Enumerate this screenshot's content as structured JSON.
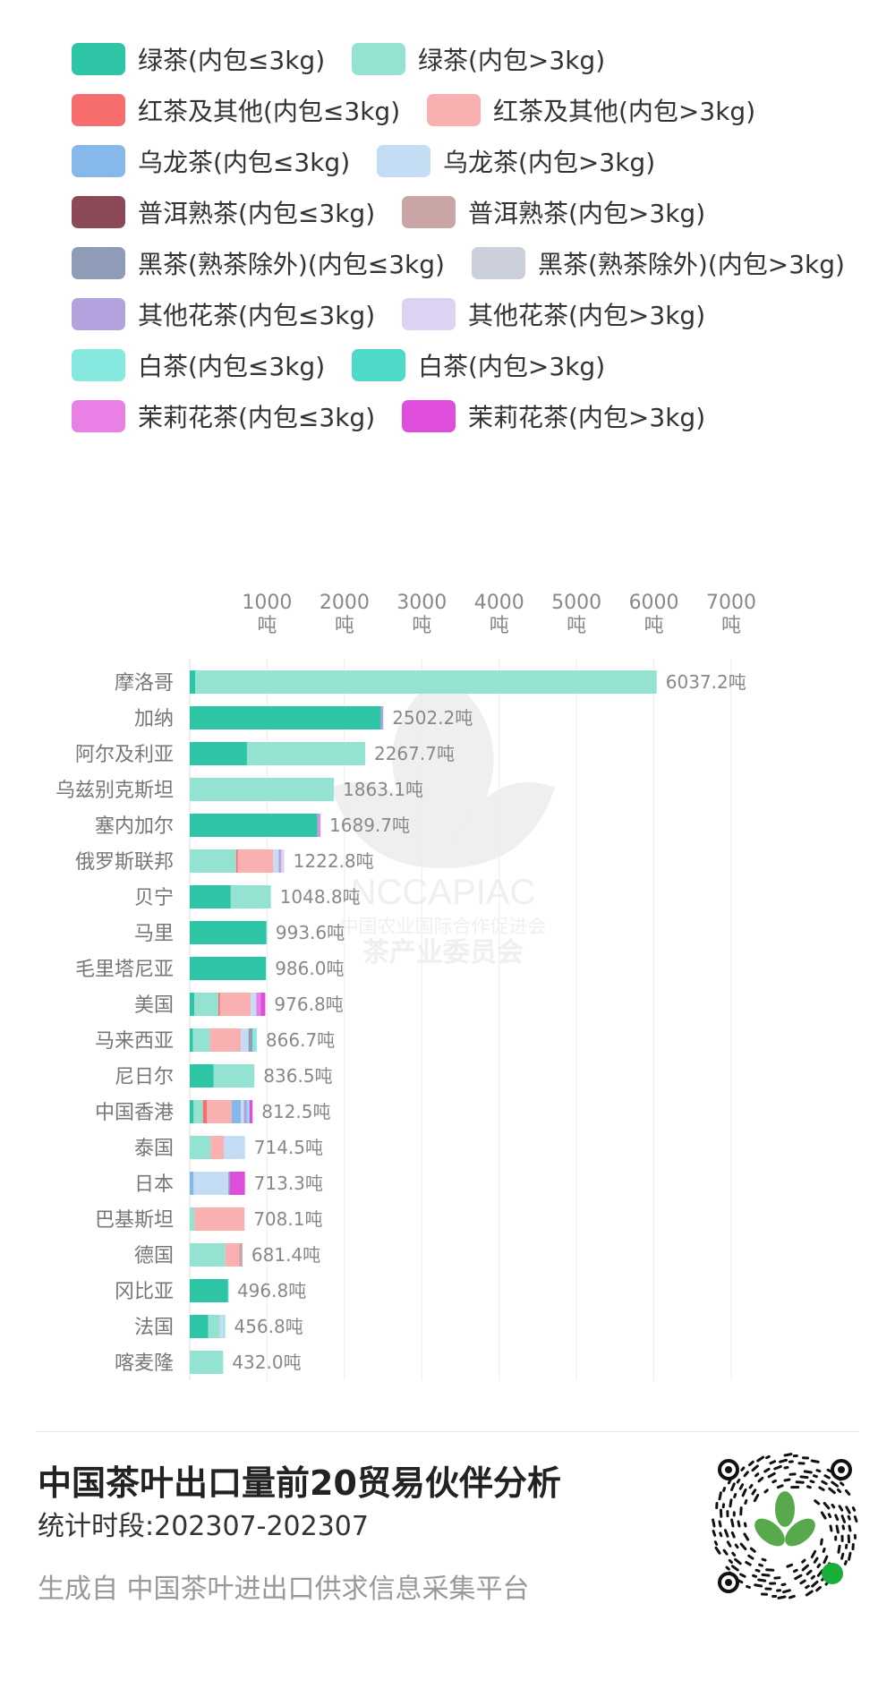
{
  "colors": {
    "green_small": "#2ec5a6",
    "green_large": "#94e3d2",
    "red_small": "#f76c6c",
    "red_large": "#f9b0b0",
    "oolong_small": "#86b8ea",
    "oolong_large": "#c5dcf5",
    "puer_small": "#8c4a58",
    "puer_large": "#c9a5a5",
    "dark_small": "#8f9cb8",
    "dark_large": "#cbcfdc",
    "flower_small": "#b3a2dd",
    "flower_large": "#ddd2f2",
    "white_small": "#86e8de",
    "white_large": "#4fd9c8",
    "jasmine_small": "#e880e6",
    "jasmine_large": "#de4ddb"
  },
  "legend": [
    {
      "label": "绿茶(内包≤3kg)",
      "color": "#2ec5a6"
    },
    {
      "label": "绿茶(内包>3kg)",
      "color": "#94e3d2"
    },
    {
      "label": "红茶及其他(内包≤3kg)",
      "color": "#f76c6c"
    },
    {
      "label": "红茶及其他(内包>3kg)",
      "color": "#f9b0b0"
    },
    {
      "label": "乌龙茶(内包≤3kg)",
      "color": "#86b8ea"
    },
    {
      "label": "乌龙茶(内包>3kg)",
      "color": "#c5dcf5"
    },
    {
      "label": "普洱熟茶(内包≤3kg)",
      "color": "#8c4a58"
    },
    {
      "label": "普洱熟茶(内包>3kg)",
      "color": "#c9a5a5"
    },
    {
      "label": "黑茶(熟茶除外)(内包≤3kg)",
      "color": "#8f9cb8"
    },
    {
      "label": "黑茶(熟茶除外)(内包>3kg)",
      "color": "#cbcfdc"
    },
    {
      "label": "其他花茶(内包≤3kg)",
      "color": "#b3a2dd"
    },
    {
      "label": "其他花茶(内包>3kg)",
      "color": "#ddd2f2"
    },
    {
      "label": "白茶(内包≤3kg)",
      "color": "#86e8de"
    },
    {
      "label": "白茶(内包>3kg)",
      "color": "#4fd9c8"
    },
    {
      "label": "茉莉花茶(内包≤3kg)",
      "color": "#e880e6"
    },
    {
      "label": "茉莉花茶(内包>3kg)",
      "color": "#de4ddb"
    }
  ],
  "chart_data": {
    "type": "bar",
    "orientation": "horizontal",
    "stacked": true,
    "axis_position": "top",
    "xlim": [
      0,
      7000
    ],
    "xticks": [
      1000,
      2000,
      3000,
      4000,
      5000,
      6000,
      7000
    ],
    "tick_unit": "吨",
    "grid": true,
    "legend_position": "top",
    "categories": [
      "摩洛哥",
      "加纳",
      "阿尔及利亚",
      "乌兹别克斯坦",
      "塞内加尔",
      "俄罗斯联邦",
      "贝宁",
      "马里",
      "毛里塔尼亚",
      "美国",
      "马来西亚",
      "尼日尔",
      "中国香港",
      "泰国",
      "日本",
      "巴基斯坦",
      "德国",
      "冈比亚",
      "法国",
      "喀麦隆"
    ],
    "totals": [
      6037.2,
      2502.2,
      2267.7,
      1863.1,
      1689.7,
      1222.8,
      1048.8,
      993.6,
      986.0,
      976.8,
      866.7,
      836.5,
      812.5,
      714.5,
      713.3,
      708.1,
      681.4,
      496.8,
      456.8,
      432.0
    ],
    "total_labels": [
      "6037.2吨",
      "2502.2吨",
      "2267.7吨",
      "1863.1吨",
      "1689.7吨",
      "1222.8吨",
      "1048.8吨",
      "993.6吨",
      "986.0吨",
      "976.8吨",
      "866.7吨",
      "836.5吨",
      "812.5吨",
      "714.5吨",
      "713.3吨",
      "708.1吨",
      "681.4吨",
      "496.8吨",
      "456.8吨",
      "432.0吨"
    ],
    "series": [
      {
        "name": "绿茶(内包≤3kg)",
        "color": "#2ec5a6",
        "values": [
          70,
          2470,
          740,
          0,
          1650,
          0,
          530,
          990,
          986,
          60,
          40,
          310,
          50,
          0,
          0,
          0,
          0,
          495,
          240,
          0
        ]
      },
      {
        "name": "绿茶(内包>3kg)",
        "color": "#94e3d2",
        "values": [
          5967,
          0,
          1527,
          1863,
          0,
          600,
          519,
          0,
          0,
          310,
          220,
          526,
          120,
          270,
          0,
          60,
          460,
          0,
          150,
          432
        ]
      },
      {
        "name": "红茶及其他(内包≤3kg)",
        "color": "#f76c6c",
        "values": [
          0,
          0,
          0,
          0,
          0,
          20,
          0,
          0,
          0,
          20,
          0,
          0,
          50,
          0,
          0,
          0,
          0,
          0,
          0,
          0
        ]
      },
      {
        "name": "红茶及其他(内包>3kg)",
        "color": "#f9b0b0",
        "values": [
          0,
          0,
          0,
          0,
          0,
          460,
          0,
          0,
          0,
          400,
          400,
          0,
          320,
          170,
          0,
          648,
          180,
          0,
          0,
          0
        ]
      },
      {
        "name": "乌龙茶(内包≤3kg)",
        "color": "#86b8ea",
        "values": [
          0,
          0,
          0,
          0,
          0,
          0,
          0,
          0,
          0,
          0,
          0,
          0,
          120,
          0,
          50,
          0,
          0,
          0,
          0,
          0
        ]
      },
      {
        "name": "乌龙茶(内包>3kg)",
        "color": "#c5dcf5",
        "values": [
          0,
          0,
          0,
          0,
          0,
          70,
          0,
          0,
          0,
          70,
          100,
          0,
          40,
          274,
          450,
          0,
          0,
          0,
          50,
          0
        ]
      },
      {
        "name": "普洱熟茶(内包≤3kg)",
        "color": "#8c4a58",
        "values": [
          0,
          0,
          0,
          0,
          0,
          0,
          0,
          0,
          0,
          0,
          0,
          0,
          0,
          0,
          0,
          0,
          0,
          0,
          0,
          0
        ]
      },
      {
        "name": "普洱熟茶(内包>3kg)",
        "color": "#c9a5a5",
        "values": [
          0,
          0,
          0,
          0,
          0,
          0,
          0,
          0,
          0,
          0,
          0,
          0,
          0,
          0,
          0,
          0,
          41,
          0,
          0,
          0
        ]
      },
      {
        "name": "黑茶(熟茶除外)(内包≤3kg)",
        "color": "#8f9cb8",
        "values": [
          0,
          0,
          0,
          0,
          0,
          0,
          0,
          0,
          0,
          0,
          50,
          0,
          0,
          0,
          20,
          0,
          0,
          0,
          0,
          0
        ]
      },
      {
        "name": "黑茶(熟茶除外)(内包>3kg)",
        "color": "#cbcfdc",
        "values": [
          0,
          0,
          0,
          0,
          0,
          0,
          0,
          0,
          0,
          0,
          0,
          0,
          0,
          0,
          0,
          0,
          0,
          0,
          0,
          0
        ]
      },
      {
        "name": "其他花茶(内包≤3kg)",
        "color": "#b3a2dd",
        "values": [
          0,
          32,
          0,
          0,
          20,
          30,
          0,
          0,
          0,
          0,
          0,
          0,
          40,
          0,
          0,
          0,
          0,
          0,
          0,
          0
        ]
      },
      {
        "name": "其他花茶(内包>3kg)",
        "color": "#ddd2f2",
        "values": [
          0,
          0,
          0,
          0,
          0,
          42,
          0,
          0,
          0,
          0,
          0,
          0,
          0,
          0,
          0,
          0,
          0,
          0,
          0,
          0
        ]
      },
      {
        "name": "白茶(内包≤3kg)",
        "color": "#86e8de",
        "values": [
          0,
          0,
          0,
          0,
          0,
          0,
          0,
          3,
          0,
          0,
          56,
          0,
          32,
          0,
          0,
          0,
          0,
          2,
          17,
          0
        ]
      },
      {
        "name": "白茶(内包>3kg)",
        "color": "#4fd9c8",
        "values": [
          0,
          0,
          0,
          0,
          0,
          0,
          0,
          0,
          0,
          0,
          0,
          0,
          0,
          0,
          0,
          0,
          0,
          0,
          0,
          0
        ]
      },
      {
        "name": "茉莉花茶(内包≤3kg)",
        "color": "#e880e6",
        "values": [
          0,
          0,
          0,
          0,
          19.7,
          0,
          0,
          0,
          0,
          60,
          0,
          0,
          0,
          0,
          0,
          0,
          0,
          0,
          0,
          0
        ]
      },
      {
        "name": "茉莉花茶(内包>3kg)",
        "color": "#de4ddb",
        "values": [
          0,
          0,
          0,
          0,
          0,
          0,
          0,
          0,
          0,
          56.8,
          0,
          0,
          40.5,
          0,
          193.3,
          0,
          0,
          0,
          0,
          0
        ]
      }
    ]
  },
  "watermark": {
    "org_code": "NCCAPIAC",
    "org_name": "中国农业国际合作促进会",
    "committee": "茶产业委员会"
  },
  "footer": {
    "title": "中国茶叶出口量前20贸易伙伴分析",
    "period": "统计时段:202307-202307",
    "source": "生成自 中国茶叶进出口供求信息采集平台"
  }
}
